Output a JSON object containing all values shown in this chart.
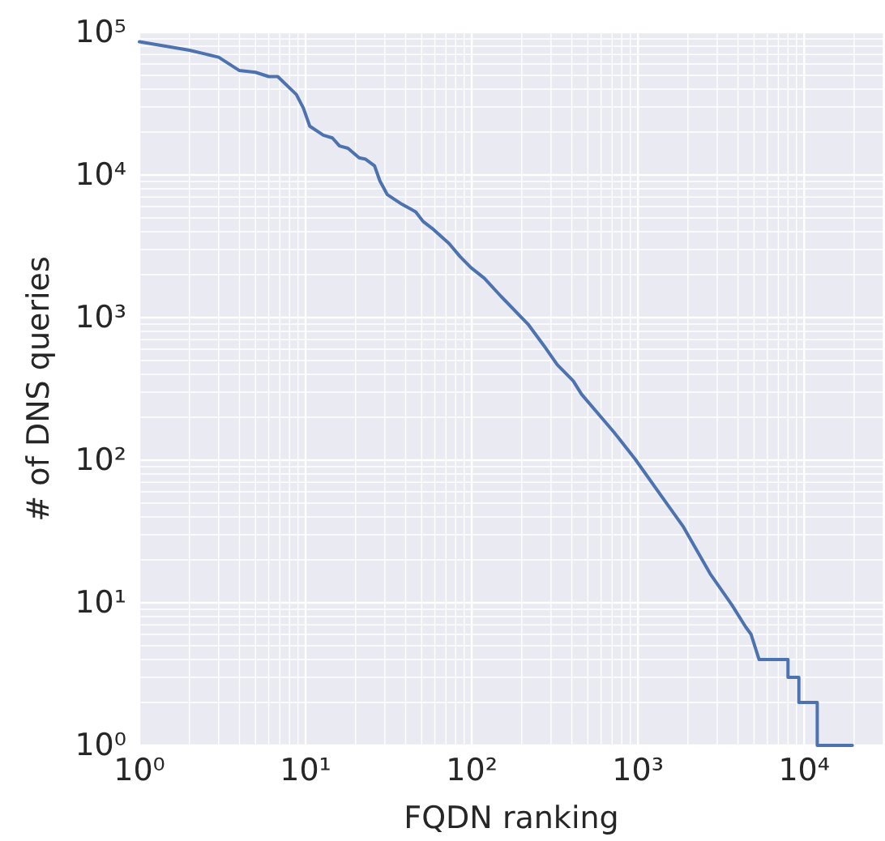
{
  "chart_data": {
    "type": "line",
    "xlabel": "FQDN ranking",
    "ylabel": "# of DNS queries",
    "log": "xy",
    "grid": true,
    "xlim": [
      1,
      30000
    ],
    "ylim": [
      1,
      100000
    ],
    "xticks": [
      {
        "value": 1,
        "label": "10⁰"
      },
      {
        "value": 2,
        "label": null
      },
      {
        "value": 3,
        "label": null
      },
      {
        "value": 4,
        "label": null
      },
      {
        "value": 5,
        "label": null
      },
      {
        "value": 6,
        "label": null
      },
      {
        "value": 7,
        "label": null
      },
      {
        "value": 8,
        "label": null
      },
      {
        "value": 9,
        "label": null
      },
      {
        "value": 10,
        "label": "10¹"
      },
      {
        "value": 20,
        "label": null
      },
      {
        "value": 30,
        "label": null
      },
      {
        "value": 40,
        "label": null
      },
      {
        "value": 50,
        "label": null
      },
      {
        "value": 60,
        "label": null
      },
      {
        "value": 70,
        "label": null
      },
      {
        "value": 80,
        "label": null
      },
      {
        "value": 90,
        "label": null
      },
      {
        "value": 100,
        "label": "10²"
      },
      {
        "value": 200,
        "label": null
      },
      {
        "value": 300,
        "label": null
      },
      {
        "value": 400,
        "label": null
      },
      {
        "value": 500,
        "label": null
      },
      {
        "value": 600,
        "label": null
      },
      {
        "value": 700,
        "label": null
      },
      {
        "value": 800,
        "label": null
      },
      {
        "value": 900,
        "label": null
      },
      {
        "value": 1000,
        "label": "10³"
      },
      {
        "value": 2000,
        "label": null
      },
      {
        "value": 3000,
        "label": null
      },
      {
        "value": 4000,
        "label": null
      },
      {
        "value": 5000,
        "label": null
      },
      {
        "value": 6000,
        "label": null
      },
      {
        "value": 7000,
        "label": null
      },
      {
        "value": 8000,
        "label": null
      },
      {
        "value": 9000,
        "label": null
      },
      {
        "value": 10000,
        "label": "10⁴"
      },
      {
        "value": 20000,
        "label": null
      },
      {
        "value": 30000,
        "label": null
      }
    ],
    "yticks": [
      {
        "value": 1,
        "label": "10⁰"
      },
      {
        "value": 2,
        "label": null
      },
      {
        "value": 3,
        "label": null
      },
      {
        "value": 4,
        "label": null
      },
      {
        "value": 5,
        "label": null
      },
      {
        "value": 6,
        "label": null
      },
      {
        "value": 7,
        "label": null
      },
      {
        "value": 8,
        "label": null
      },
      {
        "value": 9,
        "label": null
      },
      {
        "value": 10,
        "label": "10¹"
      },
      {
        "value": 20,
        "label": null
      },
      {
        "value": 30,
        "label": null
      },
      {
        "value": 40,
        "label": null
      },
      {
        "value": 50,
        "label": null
      },
      {
        "value": 60,
        "label": null
      },
      {
        "value": 70,
        "label": null
      },
      {
        "value": 80,
        "label": null
      },
      {
        "value": 90,
        "label": null
      },
      {
        "value": 100,
        "label": "10²"
      },
      {
        "value": 200,
        "label": null
      },
      {
        "value": 300,
        "label": null
      },
      {
        "value": 400,
        "label": null
      },
      {
        "value": 500,
        "label": null
      },
      {
        "value": 600,
        "label": null
      },
      {
        "value": 700,
        "label": null
      },
      {
        "value": 800,
        "label": null
      },
      {
        "value": 900,
        "label": null
      },
      {
        "value": 1000,
        "label": "10³"
      },
      {
        "value": 2000,
        "label": null
      },
      {
        "value": 3000,
        "label": null
      },
      {
        "value": 4000,
        "label": null
      },
      {
        "value": 5000,
        "label": null
      },
      {
        "value": 6000,
        "label": null
      },
      {
        "value": 7000,
        "label": null
      },
      {
        "value": 8000,
        "label": null
      },
      {
        "value": 9000,
        "label": null
      },
      {
        "value": 10000,
        "label": "10⁴"
      },
      {
        "value": 20000,
        "label": null
      },
      {
        "value": 30000,
        "label": null
      },
      {
        "value": 40000,
        "label": null
      },
      {
        "value": 50000,
        "label": null
      },
      {
        "value": 60000,
        "label": null
      },
      {
        "value": 70000,
        "label": null
      },
      {
        "value": 80000,
        "label": null
      },
      {
        "value": 90000,
        "label": null
      },
      {
        "value": 100000,
        "label": "10⁵"
      }
    ],
    "series": [
      {
        "color": "#4c72b0",
        "x": [
          1,
          2,
          3,
          4,
          5,
          6,
          6.8,
          8.8,
          9.7,
          10.6,
          12.8,
          14.5,
          16,
          18,
          21,
          23,
          26,
          28,
          31,
          38,
          46,
          51,
          59,
          73,
          85,
          99,
          119,
          150,
          218,
          272,
          327,
          408,
          458,
          718,
          961,
          1400,
          1880,
          2720,
          3670,
          4440,
          4800,
          5360,
          8000,
          8000,
          9300,
          9300,
          12000,
          12000,
          19500
        ],
        "values": [
          86000,
          75000,
          67000,
          54000,
          52500,
          49000,
          49000,
          36700,
          29500,
          22000,
          19000,
          18200,
          16000,
          15400,
          13200,
          12900,
          11600,
          9100,
          7300,
          6240,
          5520,
          4720,
          4140,
          3310,
          2680,
          2240,
          1890,
          1410,
          900,
          635,
          467,
          360,
          290,
          157,
          102,
          55,
          34,
          16,
          9.7,
          6.8,
          6,
          4,
          4,
          3,
          3,
          2,
          2,
          1,
          1
        ]
      }
    ]
  }
}
